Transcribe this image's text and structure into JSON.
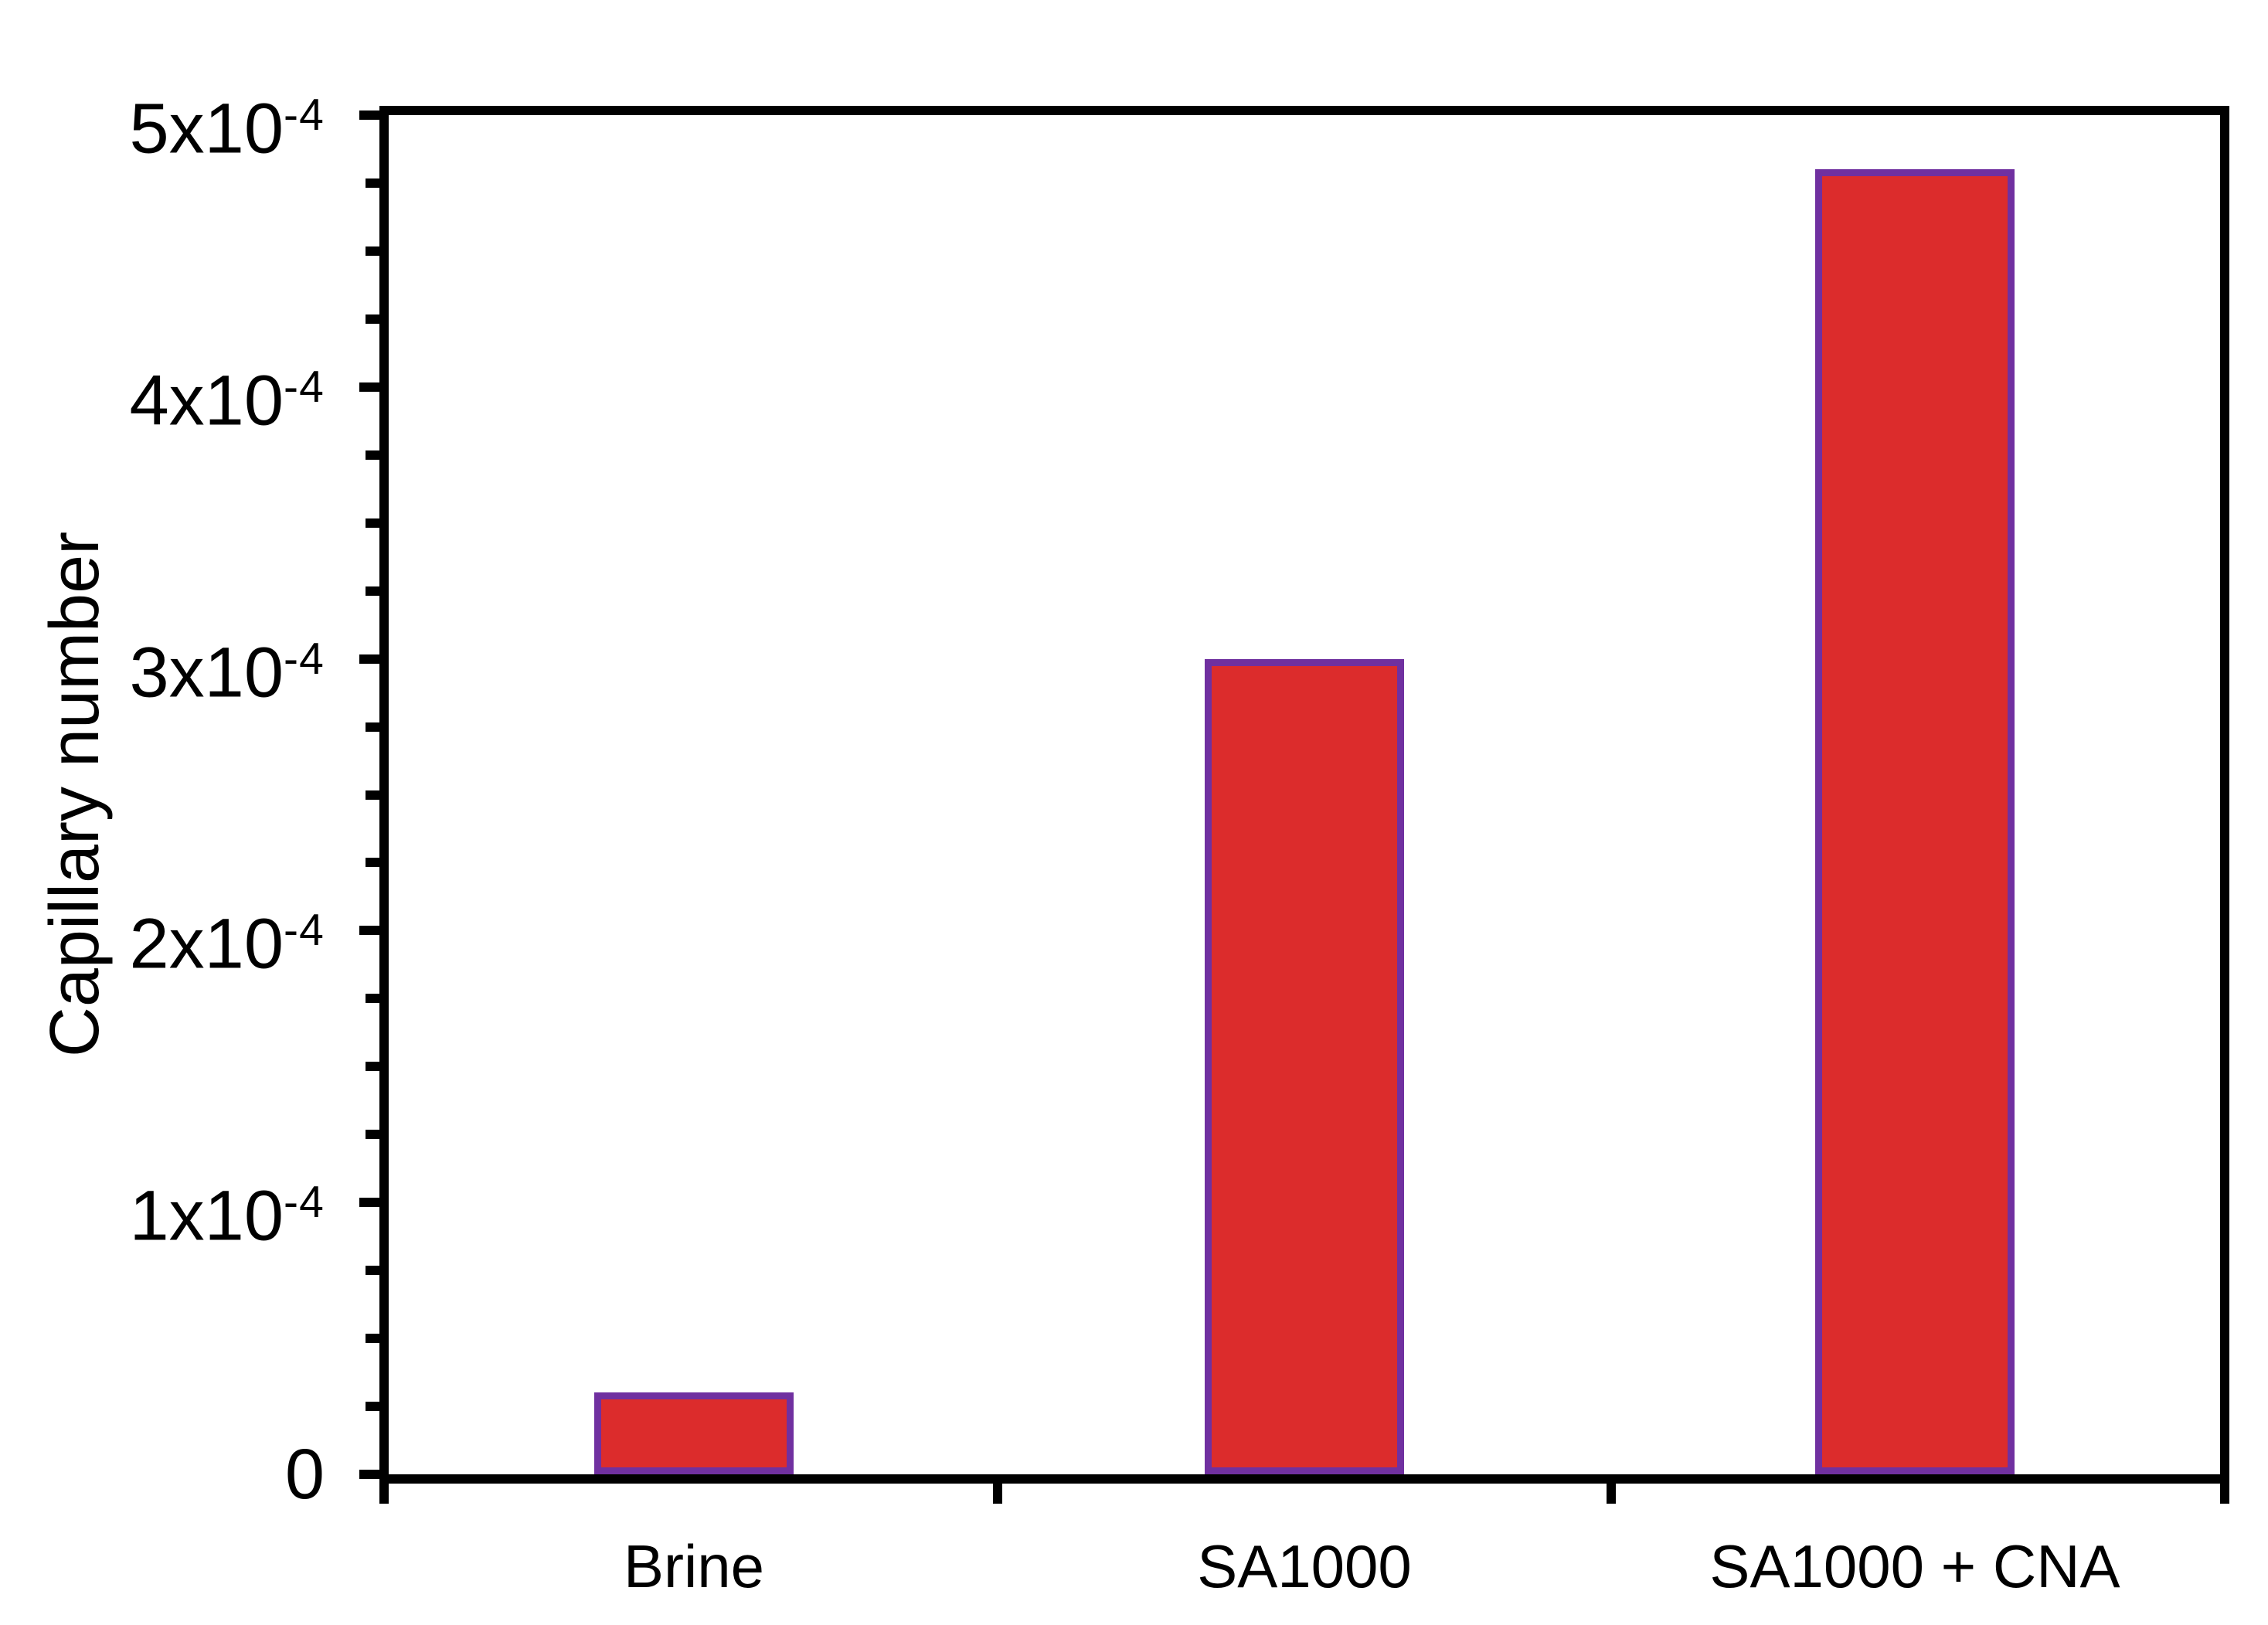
{
  "chart_data": {
    "type": "bar",
    "title": "",
    "ylabel": "Capillary number",
    "xlabel": "",
    "categories": [
      "Brine",
      "SA1000",
      "SA1000 + CNA"
    ],
    "values": [
      3e-05,
      0.0003,
      0.00048
    ],
    "ylim": [
      0,
      0.0005
    ],
    "y_ticks": [
      {
        "value": 0.0,
        "base": "0",
        "exp": ""
      },
      {
        "value": 0.0001,
        "base": "1x10",
        "exp": "-4"
      },
      {
        "value": 0.0002,
        "base": "2x10",
        "exp": "-4"
      },
      {
        "value": 0.0003,
        "base": "3x10",
        "exp": "-4"
      },
      {
        "value": 0.0004,
        "base": "4x10",
        "exp": "-4"
      },
      {
        "value": 0.0005,
        "base": "5x10",
        "exp": "-4"
      }
    ],
    "y_minor_ticks_per_interval": 3,
    "grid": "off",
    "legend": "none"
  },
  "colors": {
    "bar_fill": "#DC2C2C",
    "bar_border": "#7030A0",
    "axis": "#000000",
    "text": "#000000",
    "background": "#FFFFFF"
  }
}
